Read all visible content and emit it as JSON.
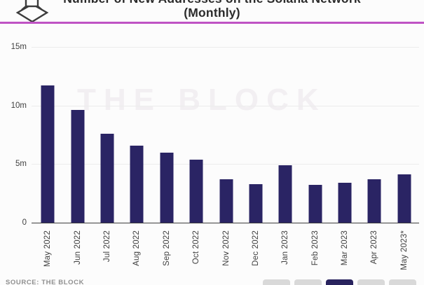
{
  "header": {
    "title_line1": "Number of New Addresses on the Solana Network",
    "title_line2": "(Monthly)",
    "divider_color": "#bf53c4",
    "logo_icon": "the-block-cube-icon"
  },
  "chart_data": {
    "type": "bar",
    "title": "Number of New Addresses on the Solana Network (Monthly)",
    "categories": [
      "May 2022",
      "Jun 2022",
      "Jul 2022",
      "Aug 2022",
      "Sep 2022",
      "Oct 2022",
      "Nov 2022",
      "Dec 2022",
      "Jan 2023",
      "Feb 2023",
      "Mar 2023",
      "Apr 2023",
      "May 2023*"
    ],
    "values": [
      11.7,
      9.6,
      7.6,
      6.6,
      6.0,
      5.4,
      3.7,
      3.3,
      4.9,
      3.2,
      3.4,
      3.7,
      4.1
    ],
    "unit": "millions",
    "ylim": [
      0,
      15
    ],
    "yticks": [
      {
        "label": "15m",
        "value": 15
      },
      {
        "label": "10m",
        "value": 10
      },
      {
        "label": "5m",
        "value": 5
      },
      {
        "label": "0",
        "value": 0
      }
    ],
    "grid": true,
    "legend": "none",
    "bar_color": "#2a2464",
    "axis_color": "#3c3c3c",
    "gridline_color": "#ececec",
    "watermark": "THE BLOCK"
  },
  "footer": {
    "source": "SOURCE: THE BLOCK",
    "pager": {
      "count": 5,
      "active_index": 2
    }
  }
}
